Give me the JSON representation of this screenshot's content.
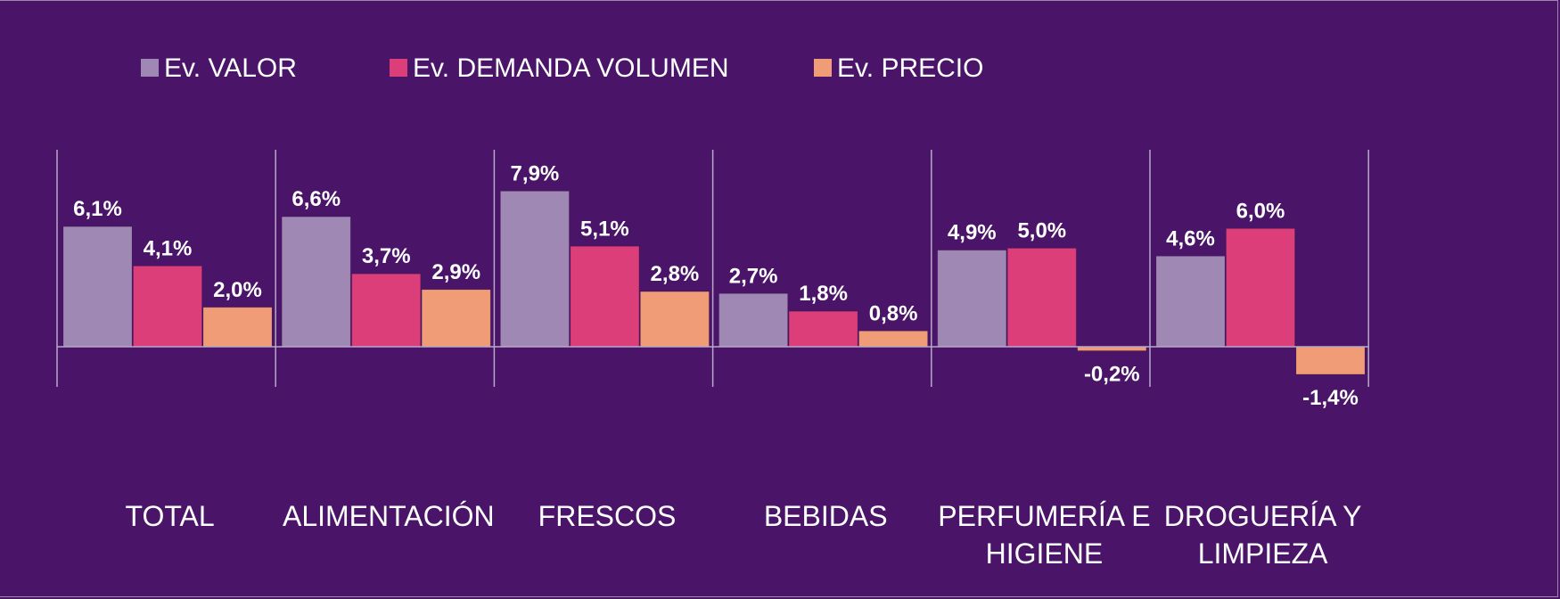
{
  "chart_data": {
    "type": "bar",
    "title": "",
    "xlabel": "",
    "ylabel": "",
    "categories": [
      [
        "TOTAL"
      ],
      [
        "ALIMENTACIÓN"
      ],
      [
        "FRESCOS"
      ],
      [
        "BEBIDAS"
      ],
      [
        "PERFUMERÍA E",
        "HIGIENE"
      ],
      [
        "DROGUERÍA Y",
        "LIMPIEZA"
      ]
    ],
    "series": [
      {
        "name": "Ev. VALOR",
        "color": "#a088b4",
        "values": [
          6.1,
          6.6,
          7.9,
          2.7,
          4.9,
          4.6
        ],
        "labels": [
          "6,1%",
          "6,6%",
          "7,9%",
          "2,7%",
          "4,9%",
          "4,6%"
        ]
      },
      {
        "name": "Ev. DEMANDA VOLUMEN",
        "color": "#db3e79",
        "values": [
          4.1,
          3.7,
          5.1,
          1.8,
          5.0,
          6.0
        ],
        "labels": [
          "4,1%",
          "3,7%",
          "5,1%",
          "1,8%",
          "5,0%",
          "6,0%"
        ]
      },
      {
        "name": "Ev. PRECIO",
        "color": "#f09c76",
        "values": [
          2.0,
          2.9,
          2.8,
          0.8,
          -0.2,
          -1.4
        ],
        "labels": [
          "2,0%",
          "2,9%",
          "2,8%",
          "0,8%",
          "-0,2%",
          "-1,4%"
        ]
      }
    ],
    "ylim": [
      -2.0,
      10.0
    ],
    "grid": false,
    "legend": "top-left",
    "unit": "%"
  },
  "colors": {
    "background": "#4a1568",
    "axis": "#b8a8c8",
    "text": "#ffffff"
  }
}
